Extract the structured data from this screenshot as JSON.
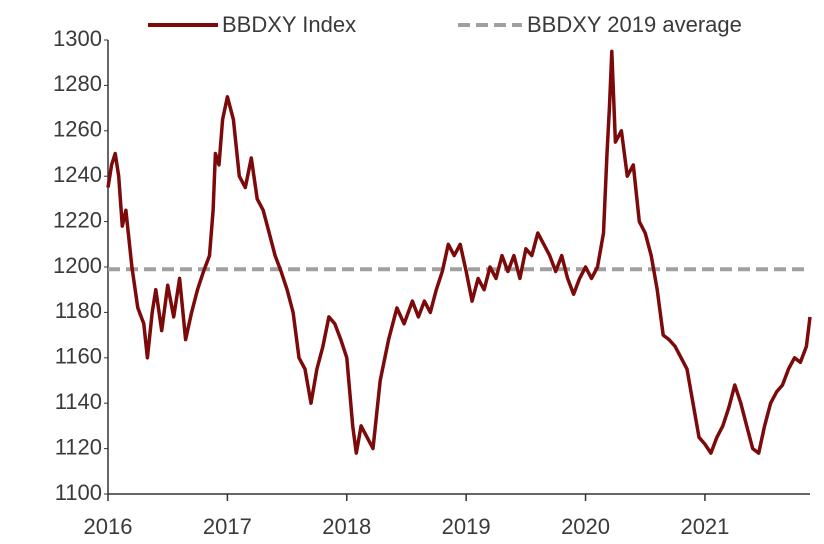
{
  "chart_data": {
    "type": "line",
    "x": [
      2016.0,
      2016.03,
      2016.06,
      2016.09,
      2016.12,
      2016.15,
      2016.2,
      2016.25,
      2016.3,
      2016.33,
      2016.37,
      2016.4,
      2016.45,
      2016.5,
      2016.55,
      2016.6,
      2016.65,
      2016.7,
      2016.75,
      2016.8,
      2016.85,
      2016.88,
      2016.9,
      2016.93,
      2016.96,
      2017.0,
      2017.05,
      2017.1,
      2017.15,
      2017.2,
      2017.25,
      2017.3,
      2017.35,
      2017.4,
      2017.45,
      2017.5,
      2017.55,
      2017.6,
      2017.65,
      2017.7,
      2017.75,
      2017.8,
      2017.85,
      2017.9,
      2017.95,
      2018.0,
      2018.05,
      2018.08,
      2018.12,
      2018.17,
      2018.22,
      2018.28,
      2018.35,
      2018.42,
      2018.48,
      2018.55,
      2018.6,
      2018.65,
      2018.7,
      2018.75,
      2018.8,
      2018.85,
      2018.9,
      2018.95,
      2019.0,
      2019.05,
      2019.1,
      2019.15,
      2019.2,
      2019.25,
      2019.3,
      2019.35,
      2019.4,
      2019.45,
      2019.5,
      2019.55,
      2019.6,
      2019.65,
      2019.7,
      2019.75,
      2019.8,
      2019.85,
      2019.9,
      2019.95,
      2020.0,
      2020.05,
      2020.1,
      2020.15,
      2020.18,
      2020.2,
      2020.22,
      2020.25,
      2020.3,
      2020.35,
      2020.4,
      2020.45,
      2020.5,
      2020.55,
      2020.6,
      2020.65,
      2020.7,
      2020.75,
      2020.8,
      2020.85,
      2020.9,
      2020.95,
      2021.0,
      2021.05,
      2021.1,
      2021.15,
      2021.2,
      2021.25,
      2021.3,
      2021.35,
      2021.4,
      2021.45,
      2021.5,
      2021.55,
      2021.6,
      2021.65,
      2021.7,
      2021.75,
      2021.8,
      2021.85,
      2021.88
    ],
    "series": [
      {
        "name": "BBDXY Index",
        "color": "#7d0a0a",
        "values": [
          1235,
          1245,
          1250,
          1240,
          1218,
          1225,
          1200,
          1182,
          1175,
          1160,
          1180,
          1190,
          1172,
          1192,
          1178,
          1195,
          1168,
          1180,
          1190,
          1198,
          1205,
          1225,
          1250,
          1245,
          1265,
          1275,
          1265,
          1240,
          1235,
          1248,
          1230,
          1225,
          1215,
          1205,
          1198,
          1190,
          1180,
          1160,
          1155,
          1140,
          1155,
          1165,
          1178,
          1175,
          1168,
          1160,
          1130,
          1118,
          1130,
          1125,
          1120,
          1150,
          1168,
          1182,
          1175,
          1185,
          1178,
          1185,
          1180,
          1190,
          1198,
          1210,
          1205,
          1210,
          1198,
          1185,
          1195,
          1190,
          1200,
          1195,
          1205,
          1198,
          1205,
          1195,
          1208,
          1205,
          1215,
          1210,
          1205,
          1198,
          1205,
          1195,
          1188,
          1195,
          1200,
          1195,
          1200,
          1215,
          1250,
          1270,
          1295,
          1255,
          1260,
          1240,
          1245,
          1220,
          1215,
          1205,
          1190,
          1170,
          1168,
          1165,
          1160,
          1155,
          1140,
          1125,
          1122,
          1118,
          1125,
          1130,
          1138,
          1148,
          1140,
          1130,
          1120,
          1118,
          1130,
          1140,
          1145,
          1148,
          1155,
          1160,
          1158,
          1165,
          1178
        ]
      }
    ],
    "reference_line": {
      "name": "BBDXY 2019 average",
      "value": 1199,
      "color": "#a0a0a0",
      "style": "dashed"
    },
    "xlim": [
      2016,
      2021.88
    ],
    "xticks": [
      2016,
      2017,
      2018,
      2019,
      2020,
      2021
    ],
    "ylim": [
      1100,
      1300
    ],
    "yticks": [
      1100,
      1120,
      1140,
      1160,
      1180,
      1200,
      1220,
      1240,
      1260,
      1280,
      1300
    ]
  }
}
